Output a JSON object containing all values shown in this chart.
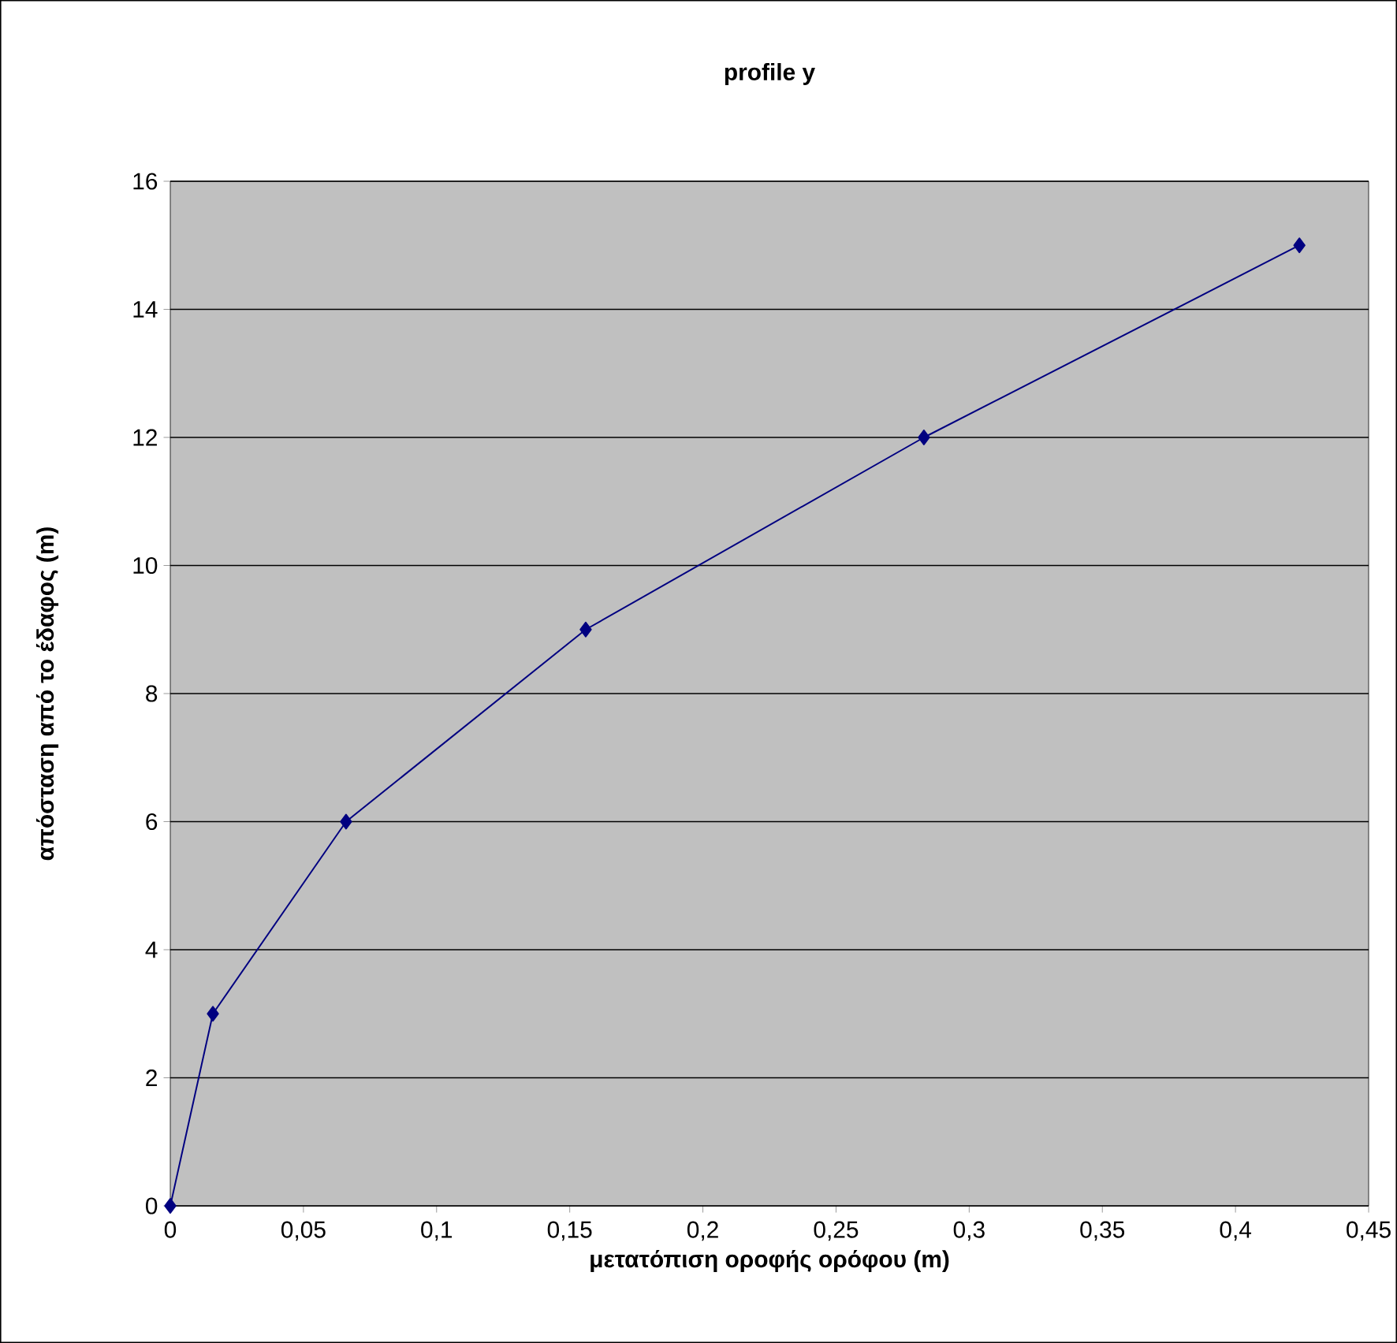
{
  "chart_data": {
    "type": "line",
    "title": "profile y",
    "xlabel": "μετατόπιση οροφής ορόφου (m)",
    "ylabel": "απόσταση από το έδαφος (m)",
    "x": [
      0,
      0.016,
      0.066,
      0.156,
      0.283,
      0.424
    ],
    "series": [
      {
        "color": "#000080",
        "values": [
          0,
          3,
          6,
          9,
          12,
          15
        ]
      }
    ],
    "xlim": [
      0,
      0.45
    ],
    "xticks": [
      0,
      {
        "value": 0.05,
        "label": "0,05"
      },
      {
        "value": 0.1,
        "label": "0,1"
      },
      {
        "value": 0.15,
        "label": "0,15"
      },
      {
        "value": 0.2,
        "label": "0,2"
      },
      {
        "value": 0.25,
        "label": "0,25"
      },
      {
        "value": 0.3,
        "label": "0,3"
      },
      {
        "value": 0.35,
        "label": "0,35"
      },
      {
        "value": 0.4,
        "label": "0,4"
      },
      {
        "value": 0.45,
        "label": "0,45"
      }
    ],
    "ylim": [
      0,
      16
    ],
    "yticks": [
      0,
      2,
      4,
      6,
      8,
      10,
      12,
      14,
      16
    ],
    "grid": "y",
    "marker": "diamond",
    "line_style": "solid"
  }
}
